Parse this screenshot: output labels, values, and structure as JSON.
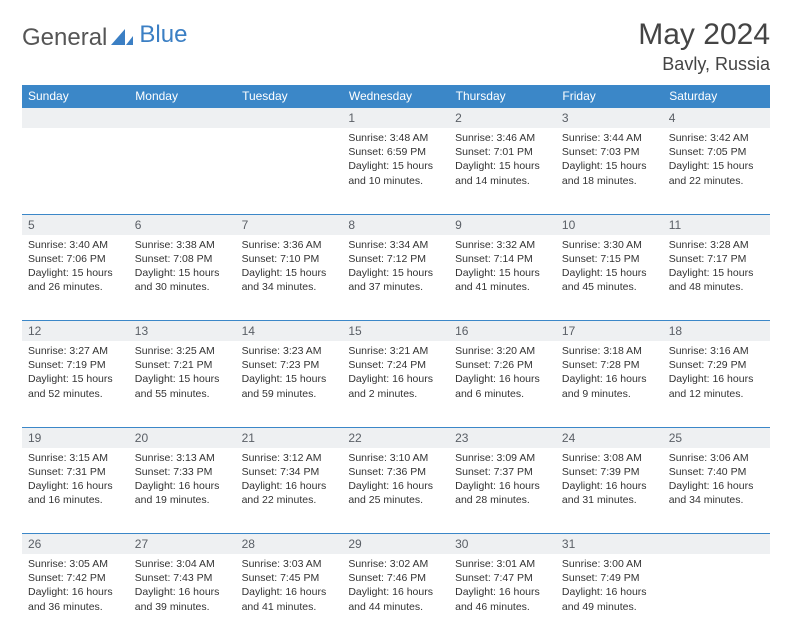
{
  "brand": {
    "part1": "General",
    "part2": "Blue"
  },
  "title": "May 2024",
  "location": "Bavly, Russia",
  "day_headers": [
    "Sunday",
    "Monday",
    "Tuesday",
    "Wednesday",
    "Thursday",
    "Friday",
    "Saturday"
  ],
  "colors": {
    "header_bg": "#3b87c8",
    "header_fg": "#ffffff",
    "daynum_bg": "#eef0f2",
    "border": "#3b87c8"
  },
  "weeks": [
    [
      null,
      null,
      null,
      {
        "n": "1",
        "sr": "Sunrise: 3:48 AM",
        "ss": "Sunset: 6:59 PM",
        "dl": "Daylight: 15 hours and 10 minutes."
      },
      {
        "n": "2",
        "sr": "Sunrise: 3:46 AM",
        "ss": "Sunset: 7:01 PM",
        "dl": "Daylight: 15 hours and 14 minutes."
      },
      {
        "n": "3",
        "sr": "Sunrise: 3:44 AM",
        "ss": "Sunset: 7:03 PM",
        "dl": "Daylight: 15 hours and 18 minutes."
      },
      {
        "n": "4",
        "sr": "Sunrise: 3:42 AM",
        "ss": "Sunset: 7:05 PM",
        "dl": "Daylight: 15 hours and 22 minutes."
      }
    ],
    [
      {
        "n": "5",
        "sr": "Sunrise: 3:40 AM",
        "ss": "Sunset: 7:06 PM",
        "dl": "Daylight: 15 hours and 26 minutes."
      },
      {
        "n": "6",
        "sr": "Sunrise: 3:38 AM",
        "ss": "Sunset: 7:08 PM",
        "dl": "Daylight: 15 hours and 30 minutes."
      },
      {
        "n": "7",
        "sr": "Sunrise: 3:36 AM",
        "ss": "Sunset: 7:10 PM",
        "dl": "Daylight: 15 hours and 34 minutes."
      },
      {
        "n": "8",
        "sr": "Sunrise: 3:34 AM",
        "ss": "Sunset: 7:12 PM",
        "dl": "Daylight: 15 hours and 37 minutes."
      },
      {
        "n": "9",
        "sr": "Sunrise: 3:32 AM",
        "ss": "Sunset: 7:14 PM",
        "dl": "Daylight: 15 hours and 41 minutes."
      },
      {
        "n": "10",
        "sr": "Sunrise: 3:30 AM",
        "ss": "Sunset: 7:15 PM",
        "dl": "Daylight: 15 hours and 45 minutes."
      },
      {
        "n": "11",
        "sr": "Sunrise: 3:28 AM",
        "ss": "Sunset: 7:17 PM",
        "dl": "Daylight: 15 hours and 48 minutes."
      }
    ],
    [
      {
        "n": "12",
        "sr": "Sunrise: 3:27 AM",
        "ss": "Sunset: 7:19 PM",
        "dl": "Daylight: 15 hours and 52 minutes."
      },
      {
        "n": "13",
        "sr": "Sunrise: 3:25 AM",
        "ss": "Sunset: 7:21 PM",
        "dl": "Daylight: 15 hours and 55 minutes."
      },
      {
        "n": "14",
        "sr": "Sunrise: 3:23 AM",
        "ss": "Sunset: 7:23 PM",
        "dl": "Daylight: 15 hours and 59 minutes."
      },
      {
        "n": "15",
        "sr": "Sunrise: 3:21 AM",
        "ss": "Sunset: 7:24 PM",
        "dl": "Daylight: 16 hours and 2 minutes."
      },
      {
        "n": "16",
        "sr": "Sunrise: 3:20 AM",
        "ss": "Sunset: 7:26 PM",
        "dl": "Daylight: 16 hours and 6 minutes."
      },
      {
        "n": "17",
        "sr": "Sunrise: 3:18 AM",
        "ss": "Sunset: 7:28 PM",
        "dl": "Daylight: 16 hours and 9 minutes."
      },
      {
        "n": "18",
        "sr": "Sunrise: 3:16 AM",
        "ss": "Sunset: 7:29 PM",
        "dl": "Daylight: 16 hours and 12 minutes."
      }
    ],
    [
      {
        "n": "19",
        "sr": "Sunrise: 3:15 AM",
        "ss": "Sunset: 7:31 PM",
        "dl": "Daylight: 16 hours and 16 minutes."
      },
      {
        "n": "20",
        "sr": "Sunrise: 3:13 AM",
        "ss": "Sunset: 7:33 PM",
        "dl": "Daylight: 16 hours and 19 minutes."
      },
      {
        "n": "21",
        "sr": "Sunrise: 3:12 AM",
        "ss": "Sunset: 7:34 PM",
        "dl": "Daylight: 16 hours and 22 minutes."
      },
      {
        "n": "22",
        "sr": "Sunrise: 3:10 AM",
        "ss": "Sunset: 7:36 PM",
        "dl": "Daylight: 16 hours and 25 minutes."
      },
      {
        "n": "23",
        "sr": "Sunrise: 3:09 AM",
        "ss": "Sunset: 7:37 PM",
        "dl": "Daylight: 16 hours and 28 minutes."
      },
      {
        "n": "24",
        "sr": "Sunrise: 3:08 AM",
        "ss": "Sunset: 7:39 PM",
        "dl": "Daylight: 16 hours and 31 minutes."
      },
      {
        "n": "25",
        "sr": "Sunrise: 3:06 AM",
        "ss": "Sunset: 7:40 PM",
        "dl": "Daylight: 16 hours and 34 minutes."
      }
    ],
    [
      {
        "n": "26",
        "sr": "Sunrise: 3:05 AM",
        "ss": "Sunset: 7:42 PM",
        "dl": "Daylight: 16 hours and 36 minutes."
      },
      {
        "n": "27",
        "sr": "Sunrise: 3:04 AM",
        "ss": "Sunset: 7:43 PM",
        "dl": "Daylight: 16 hours and 39 minutes."
      },
      {
        "n": "28",
        "sr": "Sunrise: 3:03 AM",
        "ss": "Sunset: 7:45 PM",
        "dl": "Daylight: 16 hours and 41 minutes."
      },
      {
        "n": "29",
        "sr": "Sunrise: 3:02 AM",
        "ss": "Sunset: 7:46 PM",
        "dl": "Daylight: 16 hours and 44 minutes."
      },
      {
        "n": "30",
        "sr": "Sunrise: 3:01 AM",
        "ss": "Sunset: 7:47 PM",
        "dl": "Daylight: 16 hours and 46 minutes."
      },
      {
        "n": "31",
        "sr": "Sunrise: 3:00 AM",
        "ss": "Sunset: 7:49 PM",
        "dl": "Daylight: 16 hours and 49 minutes."
      },
      null
    ]
  ]
}
